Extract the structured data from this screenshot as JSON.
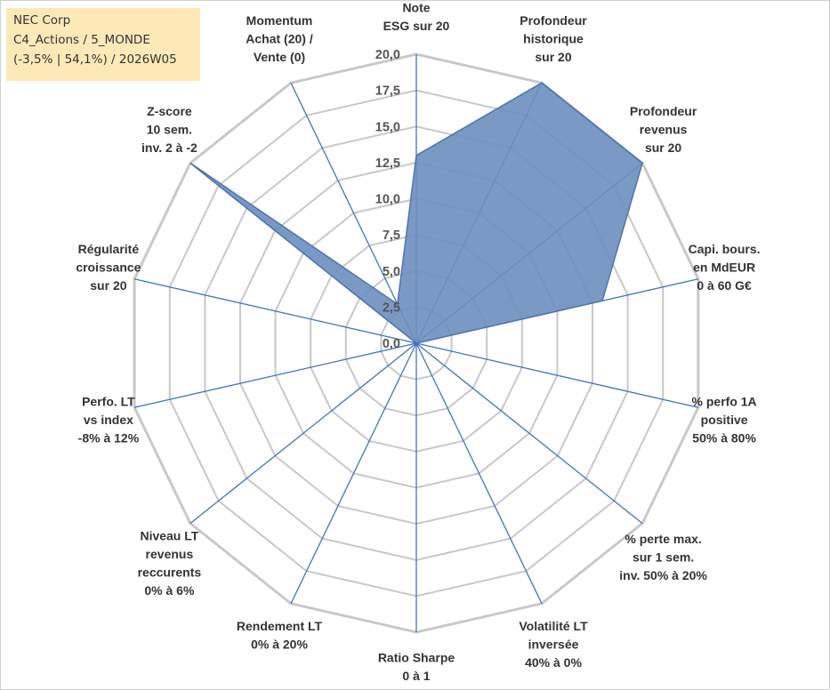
{
  "box": {
    "line1": "NEC Corp",
    "line2": "C4_Actions / 5_MONDE",
    "line3": "(-3,5% | 54,1%) / 2026W05"
  },
  "chart_data": {
    "type": "radar",
    "r_range": [
      0,
      20
    ],
    "ticks": [
      "0,0",
      "2,5",
      "5,0",
      "7,5",
      "10,0",
      "12,5",
      "15,0",
      "17,5",
      "20,0"
    ],
    "grid": true,
    "axes": [
      [
        "Note",
        "ESG sur 20"
      ],
      [
        "Profondeur",
        "historique",
        "sur 20"
      ],
      [
        "Profondeur",
        "revenus",
        "sur 20"
      ],
      [
        "Capi. bours.",
        "en MdEUR",
        "0 à 60 G€"
      ],
      [
        "% perfo 1A",
        "positive",
        "50% à 80%"
      ],
      [
        "% perte max.",
        "sur 1 sem.",
        "inv. 50% à 20%"
      ],
      [
        "Volatilité LT",
        "inversée",
        "40% à 0%"
      ],
      [
        "Ratio Sharpe",
        "0 à 1"
      ],
      [
        "Rendement LT",
        "0% à 20%"
      ],
      [
        "Niveau LT",
        "revenus",
        "reccurents",
        "0% à 6%"
      ],
      [
        "Perfo. LT",
        "vs index",
        "-8% à 12%"
      ],
      [
        "Régularité",
        "croissance",
        "sur 20"
      ],
      [
        "Z-score",
        "10 sem.",
        "inv. 2 à -2"
      ],
      [
        "Momentum",
        "Achat (20) /",
        "Vente (0)"
      ]
    ],
    "values": [
      13,
      20,
      20,
      13.2,
      0,
      0,
      0,
      0,
      0,
      0,
      0,
      0,
      20,
      3
    ],
    "colors": {
      "fill": "#6b8fbf",
      "stroke": "#4f74a8",
      "grid": "#c8c8c8",
      "spoke": "#4472c4"
    }
  }
}
